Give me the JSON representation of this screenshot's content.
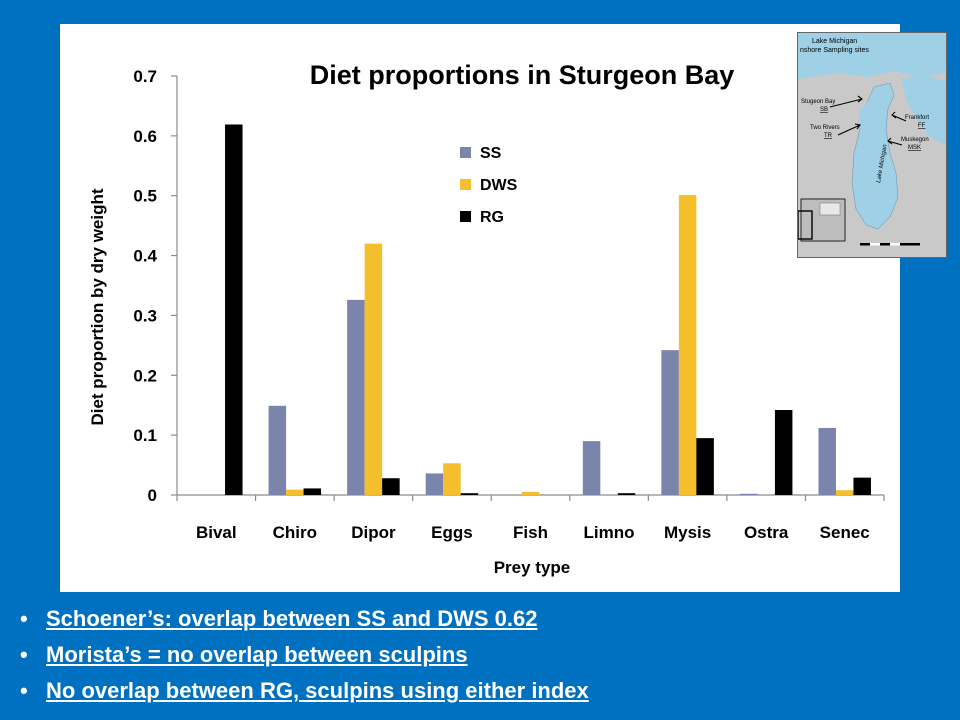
{
  "chart_data": {
    "type": "bar",
    "title": "Diet proportions in Sturgeon Bay",
    "xlabel": "Prey type",
    "ylabel": "Diet proportion by dry weight",
    "ylim": [
      0,
      0.7
    ],
    "yticks": [
      "0",
      "0.1",
      "0.2",
      "0.3",
      "0.4",
      "0.5",
      "0.6",
      "0.7"
    ],
    "categories": [
      "Bival",
      "Chiro",
      "Dipor",
      "Eggs",
      "Fish",
      "Limno",
      "Mysis",
      "Ostra",
      "Senec"
    ],
    "series": [
      {
        "name": "SS",
        "color": "#7b84ab",
        "values": [
          0,
          0.149,
          0.326,
          0.036,
          0,
          0.09,
          0.242,
          0.002,
          0.112
        ]
      },
      {
        "name": "DWS",
        "color": "#f4be2d",
        "values": [
          0,
          0.009,
          0.42,
          0.053,
          0.005,
          0,
          0.501,
          0,
          0.008
        ]
      },
      {
        "name": "RG",
        "color": "#000000",
        "values": [
          0.619,
          0.011,
          0.028,
          0.003,
          0,
          0.003,
          0.095,
          0.142,
          0.029
        ]
      }
    ],
    "legend_position": "upper-center",
    "grid": false
  },
  "map_inset": {
    "title_line1": "Lake Michigan",
    "title_line2": "nshore Sampling sites",
    "lake_label": "Lake Michigan",
    "sites": [
      {
        "name": "Stugeon Bay",
        "code": "SB"
      },
      {
        "name": "Two Rivers",
        "code": "TR"
      },
      {
        "name": "Frankfort",
        "code": "FF"
      },
      {
        "name": "Muskegon",
        "code": "MSK"
      }
    ],
    "colors": {
      "water": "#9fd0e6",
      "land": "#c9c9c9"
    }
  },
  "bullets": [
    "Schoener’s: overlap between SS and DWS 0.62",
    "Morista’s = no overlap between sculpins",
    "No overlap between RG, sculpins using either index"
  ],
  "colors": {
    "background": "#0070c0",
    "panel": "#ffffff",
    "bullet_text": "#ffffff"
  }
}
